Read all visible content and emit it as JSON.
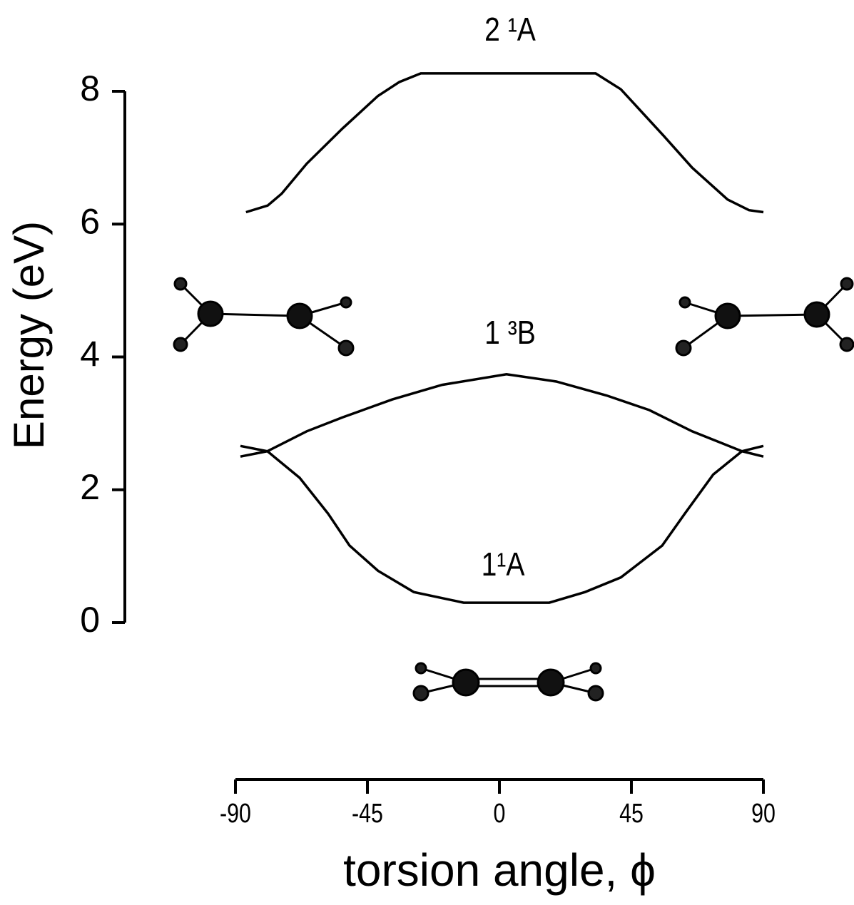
{
  "chart_data": {
    "type": "line",
    "xlabel": "torsion angle,  ϕ",
    "ylabel": "Energy (eV)",
    "xlim": [
      -90,
      90
    ],
    "xticks": [
      -90,
      -45,
      0,
      45,
      90
    ],
    "ylim": [
      0,
      8
    ],
    "yticks": [
      0,
      2,
      4,
      6,
      8
    ],
    "series": [
      {
        "name": "2 ¹A",
        "color": "#000000",
        "x": [
          -86.4,
          -79,
          -74.2,
          -65.7,
          -53.5,
          -41.4,
          -34.1,
          -26.8,
          0,
          32.8,
          41.4,
          56,
          65.7,
          77.8,
          85.1,
          90
        ],
        "values": [
          6.18,
          6.28,
          6.46,
          6.91,
          7.44,
          7.93,
          8.14,
          8.27,
          8.27,
          8.27,
          8.03,
          7.33,
          6.85,
          6.37,
          6.21,
          6.18
        ]
      },
      {
        "name": "1 ³B",
        "color": "#000000",
        "x": [
          -88.3,
          -79.1,
          -65.7,
          -53.5,
          -36.5,
          -19.5,
          2.4,
          19.4,
          36.5,
          51.1,
          65.7,
          82.7,
          90
        ],
        "values": [
          2.5,
          2.58,
          2.88,
          3.09,
          3.36,
          3.58,
          3.74,
          3.63,
          3.42,
          3.2,
          2.88,
          2.58,
          2.5
        ]
      },
      {
        "name": "1¹A",
        "color": "#000000",
        "x": [
          -88.3,
          -79.1,
          -68.1,
          -58.4,
          -51.1,
          -41.4,
          -29.2,
          -12.2,
          2.4,
          17,
          29.2,
          41.4,
          55.5,
          63.2,
          72.9,
          82.7,
          90
        ],
        "values": [
          2.66,
          2.58,
          2.18,
          1.64,
          1.16,
          0.78,
          0.46,
          0.3,
          0.3,
          0.3,
          0.46,
          0.68,
          1.16,
          1.64,
          2.23,
          2.58,
          2.66
        ]
      }
    ]
  }
}
